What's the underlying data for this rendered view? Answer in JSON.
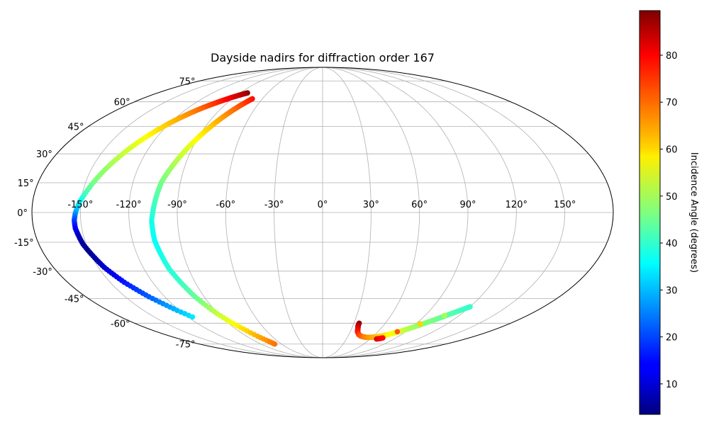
{
  "chart_data": {
    "type": "scatter",
    "projection": "mollweide",
    "title": "Dayside nadirs for diffraction order 167",
    "grid": true,
    "lon_ticks": [
      -150,
      -120,
      -90,
      -60,
      -30,
      0,
      30,
      60,
      90,
      120,
      150
    ],
    "lat_ticks": [
      -75,
      -60,
      -45,
      -30,
      -15,
      0,
      15,
      30,
      45,
      60,
      75
    ],
    "lon_tick_labels": [
      "-150°",
      "-120°",
      "-90°",
      "-60°",
      "-30°",
      "0°",
      "30°",
      "60°",
      "90°",
      "120°",
      "150°"
    ],
    "lat_tick_labels": [
      "-75°",
      "-60°",
      "-45°",
      "-30°",
      "-15°",
      "0°",
      "15°",
      "30°",
      "45°",
      "60°",
      "75°"
    ],
    "colormap": "jet",
    "colorbar": {
      "label": "Incidence Angle (degrees)",
      "range": [
        3.5,
        89.5
      ],
      "ticks": [
        10,
        20,
        30,
        40,
        50,
        60,
        70,
        80
      ],
      "tick_labels": [
        "10",
        "20",
        "30",
        "40",
        "50",
        "60",
        "70",
        "80"
      ]
    },
    "series": [
      {
        "points": [
          [
            -82,
            66,
            89
          ],
          [
            -85,
            65.2,
            86
          ],
          [
            -88,
            64.3,
            84
          ],
          [
            -91,
            63.3,
            82
          ],
          [
            -94,
            62.2,
            80
          ],
          [
            -97,
            61,
            78
          ],
          [
            -100,
            59.7,
            76
          ],
          [
            -103,
            58.3,
            74
          ],
          [
            -106,
            56.8,
            72
          ],
          [
            -109,
            55.1,
            70
          ],
          [
            -112,
            53.2,
            68
          ],
          [
            -115,
            51.1,
            66
          ],
          [
            -118,
            48.8,
            64
          ],
          [
            -121,
            46.2,
            62
          ],
          [
            -124,
            43.3,
            60
          ],
          [
            -127,
            40.2,
            58
          ],
          [
            -130,
            36.8,
            56
          ],
          [
            -133,
            33.1,
            54
          ],
          [
            -136,
            29.1,
            52
          ],
          [
            -139,
            24.8,
            50
          ],
          [
            -142,
            20.2,
            48
          ],
          [
            -145,
            15.3,
            46
          ],
          [
            -148,
            10.1,
            42
          ],
          [
            -151,
            5,
            36
          ],
          [
            -153,
            0,
            28
          ],
          [
            -154,
            -4,
            20
          ],
          [
            -154,
            -8,
            14
          ],
          [
            -153,
            -12,
            9
          ],
          [
            -152,
            -16,
            6
          ],
          [
            -150,
            -20,
            5
          ],
          [
            -148,
            -24,
            7
          ],
          [
            -146,
            -28,
            10
          ],
          [
            -143,
            -32,
            13
          ],
          [
            -140,
            -36,
            16
          ],
          [
            -136,
            -40,
            19
          ],
          [
            -132,
            -44,
            22
          ],
          [
            -127,
            -48,
            26
          ],
          [
            -122,
            -52,
            30
          ],
          [
            -116,
            -56,
            34
          ]
        ]
      },
      {
        "points": [
          [
            -70,
            62,
            78
          ],
          [
            -72,
            60.5,
            76
          ],
          [
            -74,
            58.8,
            74
          ],
          [
            -76,
            57,
            72
          ],
          [
            -78,
            55,
            70
          ],
          [
            -80,
            52.8,
            68
          ],
          [
            -82,
            50.4,
            66
          ],
          [
            -84,
            47.8,
            64
          ],
          [
            -86,
            45,
            62
          ],
          [
            -88,
            42,
            60
          ],
          [
            -90,
            38.8,
            58
          ],
          [
            -92,
            35.4,
            56
          ],
          [
            -94,
            31.8,
            54
          ],
          [
            -96,
            28,
            52
          ],
          [
            -98,
            24,
            50
          ],
          [
            -100,
            19.8,
            48
          ],
          [
            -102,
            15.4,
            46
          ],
          [
            -103,
            10.8,
            44
          ],
          [
            -104,
            6,
            42
          ],
          [
            -105,
            1,
            40
          ],
          [
            -106,
            -4,
            38
          ],
          [
            -106,
            -9,
            37
          ],
          [
            -106,
            -14,
            36
          ],
          [
            -105,
            -19,
            37
          ],
          [
            -104,
            -24,
            38
          ],
          [
            -103,
            -29,
            39
          ],
          [
            -101,
            -34,
            40
          ],
          [
            -99,
            -39,
            42
          ],
          [
            -97,
            -44,
            44
          ],
          [
            -94,
            -49,
            48
          ],
          [
            -91,
            -54,
            52
          ],
          [
            -87,
            -59,
            56
          ],
          [
            -82,
            -64,
            60
          ],
          [
            -77,
            -69,
            64
          ],
          [
            -72,
            -73,
            67
          ],
          [
            -70,
            -75,
            69
          ]
        ]
      },
      {
        "points": [
          [
            35,
            -60,
            89
          ],
          [
            35,
            -61.5,
            86
          ],
          [
            36,
            -63,
            83
          ],
          [
            37,
            -64.5,
            80
          ],
          [
            38,
            -65.8,
            78
          ],
          [
            40,
            -67,
            76
          ],
          [
            42,
            -68,
            74
          ],
          [
            45,
            -68.8,
            72
          ],
          [
            48,
            -69.3,
            70
          ],
          [
            51,
            -69.6,
            68
          ],
          [
            54,
            -69.8,
            67
          ],
          [
            57,
            -69.8,
            66
          ],
          [
            60,
            -69.7,
            65
          ],
          [
            63,
            -69.5,
            64
          ],
          [
            66,
            -69.2,
            62
          ],
          [
            69,
            -68.8,
            61
          ],
          [
            72,
            -68.3,
            60
          ],
          [
            75,
            -67.7,
            58
          ],
          [
            78,
            -67,
            57
          ],
          [
            81,
            -66.2,
            55
          ],
          [
            84,
            -65.3,
            54
          ],
          [
            87,
            -64.3,
            52
          ],
          [
            90,
            -63.2,
            50
          ],
          [
            93,
            -62,
            49
          ],
          [
            96,
            -60.8,
            48
          ],
          [
            99,
            -59.5,
            47
          ],
          [
            102,
            -58.2,
            46
          ],
          [
            105,
            -56.8,
            45
          ],
          [
            108,
            -55.4,
            44
          ],
          [
            111,
            -54,
            43
          ],
          [
            114,
            -52.6,
            42
          ],
          [
            117,
            -51.2,
            41
          ],
          [
            120,
            -49.8,
            40
          ],
          [
            68,
            -71,
            82
          ],
          [
            71,
            -70.7,
            80
          ],
          [
            74,
            -70.2,
            78
          ]
        ]
      }
    ]
  }
}
